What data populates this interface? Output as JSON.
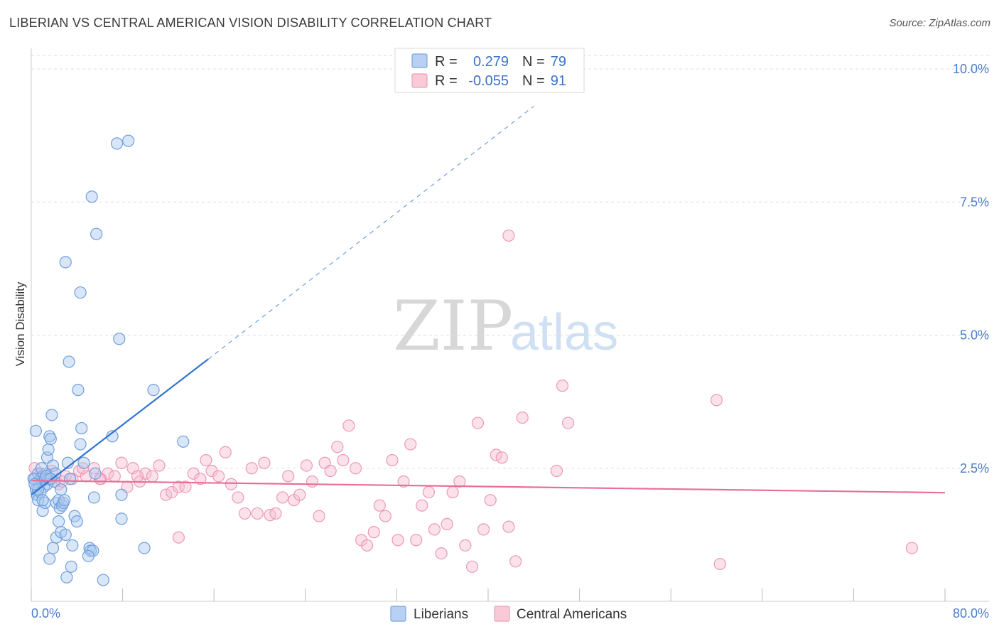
{
  "header": {
    "title": "LIBERIAN VS CENTRAL AMERICAN VISION DISABILITY CORRELATION CHART",
    "source": "Source: ZipAtlas.com"
  },
  "watermark": {
    "zip": "ZIP",
    "atlas": "atlas"
  },
  "colors": {
    "blue_fill": "#a9c8f0",
    "blue_stroke": "#6f9fdc",
    "blue_line": "#2f73cf",
    "pink_fill": "#f6bfd0",
    "pink_stroke": "#ee98b4",
    "pink_line": "#e86f9a",
    "tick_text": "#4a7cc9",
    "grid": "#dddddd"
  },
  "legend": {
    "rows": [
      {
        "r_label": "R =",
        "r_value": "0.279",
        "n_label": "N =",
        "n_value": "79"
      },
      {
        "r_label": "R =",
        "r_value": "-0.055",
        "n_label": "N =",
        "n_value": "91"
      }
    ]
  },
  "chart_data": {
    "type": "scatter",
    "title": "LIBERIAN VS CENTRAL AMERICAN VISION DISABILITY CORRELATION CHART",
    "xlabel": "",
    "ylabel": "Vision Disability",
    "xlim": [
      0,
      80
    ],
    "ylim": [
      0,
      10.5
    ],
    "x_tick_labels": [
      "0.0%",
      "80.0%"
    ],
    "y_ticks": [
      2.5,
      5.0,
      7.5,
      10.0
    ],
    "y_tick_labels": [
      "2.5%",
      "5.0%",
      "7.5%",
      "10.0%"
    ],
    "series": [
      {
        "name": "Liberians",
        "r": 0.279,
        "n": 79,
        "trend": {
          "x0": 0,
          "y0": 2.0,
          "x1": 15.5,
          "y1": 4.55,
          "dash_x1": 44.0,
          "dash_y1": 9.3
        },
        "points": [
          [
            0.3,
            2.3
          ],
          [
            0.4,
            2.1
          ],
          [
            0.5,
            2.0
          ],
          [
            0.6,
            2.4
          ],
          [
            0.7,
            2.2
          ],
          [
            0.8,
            2.3
          ],
          [
            0.9,
            2.25
          ],
          [
            1.0,
            2.35
          ],
          [
            1.1,
            2.15
          ],
          [
            1.2,
            2.3
          ],
          [
            1.3,
            2.4
          ],
          [
            1.4,
            2.2
          ],
          [
            1.5,
            2.3
          ],
          [
            0.4,
            3.2
          ],
          [
            0.5,
            2.0
          ],
          [
            0.6,
            1.9
          ],
          [
            0.8,
            2.05
          ],
          [
            1.0,
            1.7
          ],
          [
            1.2,
            1.85
          ],
          [
            1.4,
            2.7
          ],
          [
            1.5,
            2.85
          ],
          [
            1.6,
            3.1
          ],
          [
            1.7,
            3.05
          ],
          [
            1.8,
            3.5
          ],
          [
            1.9,
            2.55
          ],
          [
            2.0,
            2.25
          ],
          [
            2.2,
            1.85
          ],
          [
            2.4,
            1.9
          ],
          [
            2.5,
            1.75
          ],
          [
            2.6,
            2.1
          ],
          [
            2.7,
            1.8
          ],
          [
            2.8,
            1.85
          ],
          [
            1.6,
            0.8
          ],
          [
            1.9,
            1.0
          ],
          [
            2.2,
            1.2
          ],
          [
            2.4,
            1.5
          ],
          [
            2.6,
            1.3
          ],
          [
            2.9,
            1.9
          ],
          [
            3.0,
            1.25
          ],
          [
            3.2,
            2.6
          ],
          [
            3.4,
            2.3
          ],
          [
            3.6,
            1.05
          ],
          [
            3.8,
            1.6
          ],
          [
            4.0,
            1.5
          ],
          [
            4.3,
            2.95
          ],
          [
            4.4,
            3.25
          ],
          [
            4.6,
            2.6
          ],
          [
            5.1,
            1.0
          ],
          [
            5.2,
            0.95
          ],
          [
            5.4,
            0.95
          ],
          [
            5.0,
            0.85
          ],
          [
            3.5,
            0.65
          ],
          [
            3.1,
            0.45
          ],
          [
            6.3,
            0.4
          ],
          [
            3.3,
            4.5
          ],
          [
            4.1,
            3.97
          ],
          [
            3.0,
            6.37
          ],
          [
            4.3,
            5.8
          ],
          [
            5.7,
            6.9
          ],
          [
            5.3,
            7.6
          ],
          [
            7.5,
            8.6
          ],
          [
            8.5,
            8.65
          ],
          [
            7.7,
            4.93
          ],
          [
            10.7,
            3.97
          ],
          [
            7.1,
            3.1
          ],
          [
            13.3,
            3.0
          ],
          [
            5.6,
            2.4
          ],
          [
            7.9,
            2.0
          ],
          [
            7.9,
            1.55
          ],
          [
            5.5,
            1.95
          ],
          [
            9.9,
            1.0
          ],
          [
            1.0,
            1.9
          ],
          [
            0.9,
            2.5
          ],
          [
            2.1,
            2.4
          ],
          [
            1.3,
            2.35
          ],
          [
            0.6,
            2.1
          ],
          [
            0.2,
            2.3
          ],
          [
            0.3,
            2.2
          ],
          [
            1.7,
            2.3
          ]
        ]
      },
      {
        "name": "Central Americans",
        "r": -0.055,
        "n": 91,
        "trend": {
          "x0": 0,
          "y0": 2.27,
          "x1": 80,
          "y1": 2.04
        },
        "points": [
          [
            0.3,
            2.5
          ],
          [
            0.8,
            2.4
          ],
          [
            1.2,
            2.3
          ],
          [
            1.8,
            2.45
          ],
          [
            2.4,
            2.2
          ],
          [
            3.0,
            2.35
          ],
          [
            3.6,
            2.3
          ],
          [
            4.2,
            2.45
          ],
          [
            4.8,
            2.35
          ],
          [
            5.5,
            2.5
          ],
          [
            6.1,
            2.3
          ],
          [
            6.7,
            2.4
          ],
          [
            7.3,
            2.35
          ],
          [
            7.9,
            2.6
          ],
          [
            8.4,
            2.15
          ],
          [
            8.9,
            2.5
          ],
          [
            9.5,
            2.25
          ],
          [
            10.0,
            2.4
          ],
          [
            10.6,
            2.35
          ],
          [
            11.2,
            2.55
          ],
          [
            11.8,
            2.0
          ],
          [
            12.3,
            2.05
          ],
          [
            12.9,
            2.15
          ],
          [
            13.5,
            2.15
          ],
          [
            14.2,
            2.4
          ],
          [
            14.8,
            2.3
          ],
          [
            15.3,
            2.65
          ],
          [
            15.8,
            2.45
          ],
          [
            16.4,
            2.35
          ],
          [
            17.0,
            2.8
          ],
          [
            17.5,
            2.2
          ],
          [
            18.1,
            1.95
          ],
          [
            18.7,
            1.65
          ],
          [
            19.3,
            2.5
          ],
          [
            19.8,
            1.65
          ],
          [
            20.4,
            2.6
          ],
          [
            20.9,
            1.62
          ],
          [
            21.4,
            1.65
          ],
          [
            22.0,
            1.95
          ],
          [
            22.5,
            2.35
          ],
          [
            23.0,
            1.9
          ],
          [
            23.5,
            2.0
          ],
          [
            24.1,
            2.55
          ],
          [
            24.6,
            2.25
          ],
          [
            25.2,
            1.6
          ],
          [
            25.7,
            2.6
          ],
          [
            26.2,
            2.45
          ],
          [
            26.8,
            2.9
          ],
          [
            27.3,
            2.65
          ],
          [
            27.8,
            3.3
          ],
          [
            28.4,
            2.5
          ],
          [
            28.9,
            1.15
          ],
          [
            29.4,
            1.05
          ],
          [
            30.0,
            1.3
          ],
          [
            30.5,
            1.8
          ],
          [
            31.0,
            1.6
          ],
          [
            31.6,
            2.65
          ],
          [
            32.1,
            1.15
          ],
          [
            32.6,
            2.25
          ],
          [
            33.2,
            2.95
          ],
          [
            33.7,
            1.15
          ],
          [
            34.2,
            1.8
          ],
          [
            34.8,
            2.05
          ],
          [
            35.3,
            1.35
          ],
          [
            35.9,
            0.9
          ],
          [
            36.4,
            1.45
          ],
          [
            36.9,
            2.05
          ],
          [
            37.5,
            2.25
          ],
          [
            38.0,
            1.05
          ],
          [
            38.6,
            0.65
          ],
          [
            39.1,
            3.35
          ],
          [
            39.6,
            1.35
          ],
          [
            40.2,
            1.9
          ],
          [
            40.7,
            2.75
          ],
          [
            41.2,
            2.7
          ],
          [
            41.8,
            1.4
          ],
          [
            42.4,
            0.75
          ],
          [
            43.0,
            3.45
          ],
          [
            46.0,
            2.45
          ],
          [
            47.0,
            3.35
          ],
          [
            46.5,
            4.05
          ],
          [
            60.0,
            3.78
          ],
          [
            41.8,
            6.87
          ],
          [
            60.3,
            0.7
          ],
          [
            77.1,
            1.0
          ],
          [
            12.9,
            1.2
          ],
          [
            9.3,
            2.35
          ],
          [
            6.0,
            2.3
          ],
          [
            2.7,
            2.25
          ],
          [
            1.5,
            2.3
          ],
          [
            4.5,
            2.5
          ]
        ]
      }
    ]
  },
  "bottom_legend": {
    "items": [
      {
        "label": "Liberians"
      },
      {
        "label": "Central Americans"
      }
    ]
  }
}
